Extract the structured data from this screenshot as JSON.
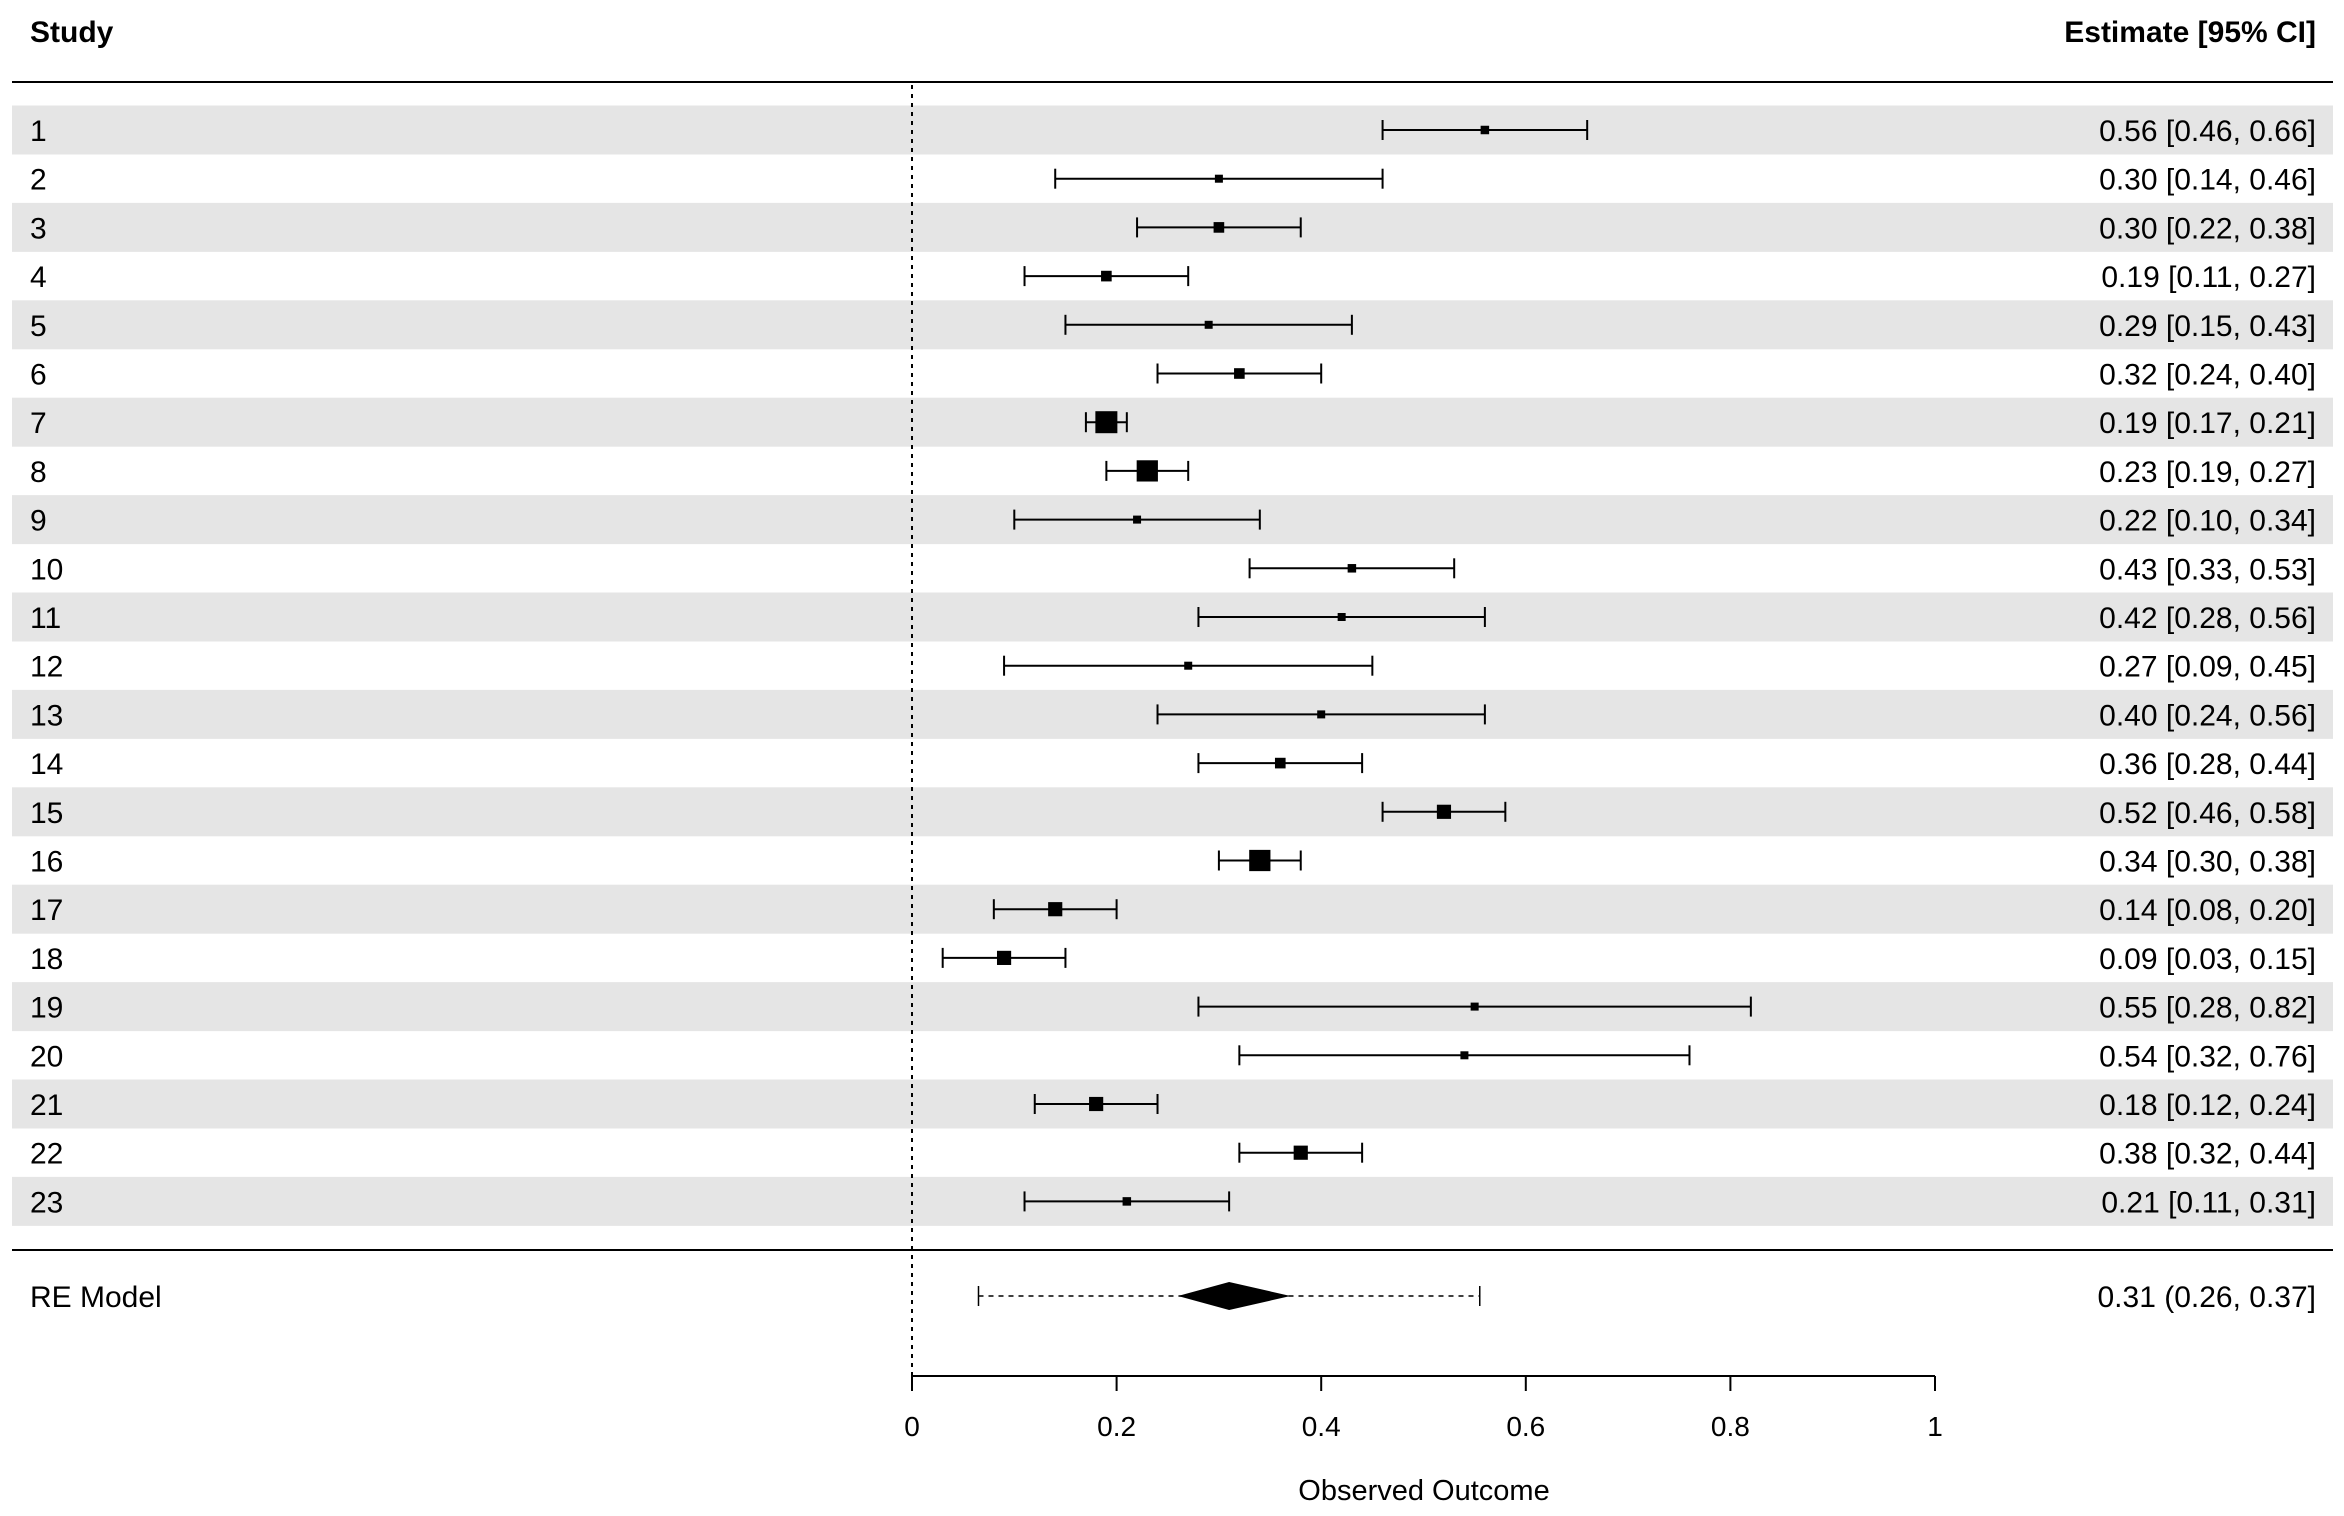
{
  "chart_data": {
    "type": "forest",
    "header_left": "Study",
    "header_right": "Estimate [95% CI]",
    "xlabel": "Observed Outcome",
    "xlim": [
      0,
      1
    ],
    "x_ticks": [
      "0",
      "0.2",
      "0.4",
      "0.6",
      "0.8",
      "1"
    ],
    "reference_line": 0,
    "row_shading": "alternating",
    "studies": [
      {
        "label": "1",
        "est": 0.56,
        "lo": 0.46,
        "hi": 0.66,
        "ci_text": "0.56 [0.46, 0.66]"
      },
      {
        "label": "2",
        "est": 0.3,
        "lo": 0.14,
        "hi": 0.46,
        "ci_text": "0.30 [0.14, 0.46]"
      },
      {
        "label": "3",
        "est": 0.3,
        "lo": 0.22,
        "hi": 0.38,
        "ci_text": "0.30 [0.22, 0.38]"
      },
      {
        "label": "4",
        "est": 0.19,
        "lo": 0.11,
        "hi": 0.27,
        "ci_text": "0.19 [0.11, 0.27]"
      },
      {
        "label": "5",
        "est": 0.29,
        "lo": 0.15,
        "hi": 0.43,
        "ci_text": "0.29 [0.15, 0.43]"
      },
      {
        "label": "6",
        "est": 0.32,
        "lo": 0.24,
        "hi": 0.4,
        "ci_text": "0.32 [0.24, 0.40]"
      },
      {
        "label": "7",
        "est": 0.19,
        "lo": 0.17,
        "hi": 0.21,
        "ci_text": "0.19 [0.17, 0.21]"
      },
      {
        "label": "8",
        "est": 0.23,
        "lo": 0.19,
        "hi": 0.27,
        "ci_text": "0.23 [0.19, 0.27]"
      },
      {
        "label": "9",
        "est": 0.22,
        "lo": 0.1,
        "hi": 0.34,
        "ci_text": "0.22 [0.10, 0.34]"
      },
      {
        "label": "10",
        "est": 0.43,
        "lo": 0.33,
        "hi": 0.53,
        "ci_text": "0.43 [0.33, 0.53]"
      },
      {
        "label": "11",
        "est": 0.42,
        "lo": 0.28,
        "hi": 0.56,
        "ci_text": "0.42 [0.28, 0.56]"
      },
      {
        "label": "12",
        "est": 0.27,
        "lo": 0.09,
        "hi": 0.45,
        "ci_text": "0.27 [0.09, 0.45]"
      },
      {
        "label": "13",
        "est": 0.4,
        "lo": 0.24,
        "hi": 0.56,
        "ci_text": "0.40 [0.24, 0.56]"
      },
      {
        "label": "14",
        "est": 0.36,
        "lo": 0.28,
        "hi": 0.44,
        "ci_text": "0.36 [0.28, 0.44]"
      },
      {
        "label": "15",
        "est": 0.52,
        "lo": 0.46,
        "hi": 0.58,
        "ci_text": "0.52 [0.46, 0.58]"
      },
      {
        "label": "16",
        "est": 0.34,
        "lo": 0.3,
        "hi": 0.38,
        "ci_text": "0.34 [0.30, 0.38]"
      },
      {
        "label": "17",
        "est": 0.14,
        "lo": 0.08,
        "hi": 0.2,
        "ci_text": "0.14 [0.08, 0.20]"
      },
      {
        "label": "18",
        "est": 0.09,
        "lo": 0.03,
        "hi": 0.15,
        "ci_text": "0.09 [0.03, 0.15]"
      },
      {
        "label": "19",
        "est": 0.55,
        "lo": 0.28,
        "hi": 0.82,
        "ci_text": "0.55 [0.28, 0.82]"
      },
      {
        "label": "20",
        "est": 0.54,
        "lo": 0.32,
        "hi": 0.76,
        "ci_text": "0.54 [0.32, 0.76]"
      },
      {
        "label": "21",
        "est": 0.18,
        "lo": 0.12,
        "hi": 0.24,
        "ci_text": "0.18 [0.12, 0.24]"
      },
      {
        "label": "22",
        "est": 0.38,
        "lo": 0.32,
        "hi": 0.44,
        "ci_text": "0.38 [0.32, 0.44]"
      },
      {
        "label": "23",
        "est": 0.21,
        "lo": 0.11,
        "hi": 0.31,
        "ci_text": "0.21 [0.11, 0.31]"
      }
    ],
    "summary": {
      "label": "RE Model",
      "est": 0.31,
      "lo": 0.26,
      "hi": 0.37,
      "pi_lo": 0.065,
      "pi_hi": 0.555,
      "ci_text": "0.31 (0.26, 0.37]"
    },
    "colors": {
      "shade": "#e5e5e5",
      "ink": "#000000"
    }
  }
}
